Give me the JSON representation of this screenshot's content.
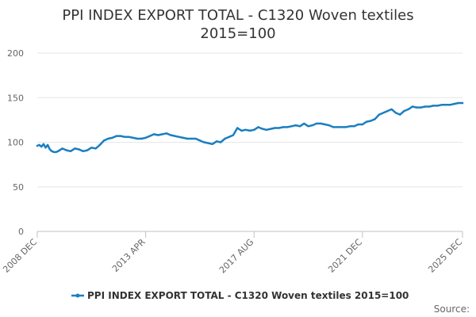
{
  "chart_data": {
    "type": "line",
    "title_line1": "PPI INDEX EXPORT TOTAL - C1320 Woven textiles",
    "title_line2": "2015=100",
    "xlabel": "",
    "ylabel": "",
    "ylim": [
      0,
      200
    ],
    "yticks": [
      0,
      50,
      100,
      150,
      200
    ],
    "xlim": [
      0,
      204
    ],
    "x_tick_labels": [
      {
        "label": "2008 DEC",
        "x": 0
      },
      {
        "label": "2013 APR",
        "x": 52
      },
      {
        "label": "2017 AUG",
        "x": 104
      },
      {
        "label": "2021 DEC",
        "x": 156
      },
      {
        "label": "2025 DEC",
        "x": 204
      }
    ],
    "grid": true,
    "legend_position": "bottom",
    "series": [
      {
        "name": "PPI INDEX EXPORT TOTAL - C1320 Woven textiles 2015=100",
        "color": "#1a7fc1",
        "x": [
          0,
          1,
          2,
          3,
          4,
          5,
          6,
          7,
          8,
          9,
          10,
          12,
          14,
          16,
          18,
          20,
          22,
          24,
          26,
          28,
          30,
          32,
          34,
          36,
          38,
          40,
          42,
          44,
          46,
          48,
          50,
          52,
          54,
          56,
          58,
          60,
          62,
          64,
          66,
          68,
          70,
          72,
          74,
          76,
          78,
          80,
          82,
          84,
          86,
          88,
          90,
          92,
          94,
          96,
          98,
          100,
          102,
          104,
          106,
          108,
          110,
          112,
          114,
          116,
          118,
          120,
          122,
          124,
          126,
          128,
          130,
          132,
          134,
          136,
          138,
          140,
          142,
          144,
          146,
          148,
          150,
          152,
          154,
          156,
          158,
          160,
          162,
          164,
          166,
          168,
          170,
          172,
          174,
          176,
          178,
          180,
          182,
          184,
          186,
          188,
          190,
          192,
          194,
          196,
          198,
          200,
          202,
          204
        ],
        "values": [
          96,
          97,
          95,
          98,
          94,
          97,
          92,
          90,
          89,
          89,
          90,
          93,
          91,
          90,
          93,
          92,
          90,
          91,
          94,
          93,
          97,
          102,
          104,
          105,
          107,
          107,
          106,
          106,
          105,
          104,
          104,
          105,
          107,
          109,
          108,
          109,
          110,
          108,
          107,
          106,
          105,
          104,
          104,
          104,
          102,
          100,
          99,
          98,
          101,
          100,
          104,
          106,
          108,
          116,
          113,
          114,
          113,
          114,
          117,
          115,
          114,
          115,
          116,
          116,
          117,
          117,
          118,
          119,
          118,
          121,
          118,
          119,
          121,
          121,
          120,
          119,
          117,
          117,
          117,
          117,
          118,
          118,
          120,
          120,
          123,
          124,
          126,
          131,
          133,
          135,
          137,
          133,
          131,
          135,
          137,
          140,
          139,
          139,
          140,
          140,
          141,
          141,
          142,
          142,
          142,
          143,
          144,
          144
        ]
      }
    ]
  },
  "legend": {
    "label": "PPI INDEX EXPORT TOTAL - C1320 Woven textiles 2015=100"
  },
  "footer": {
    "source_label": "Source:"
  }
}
